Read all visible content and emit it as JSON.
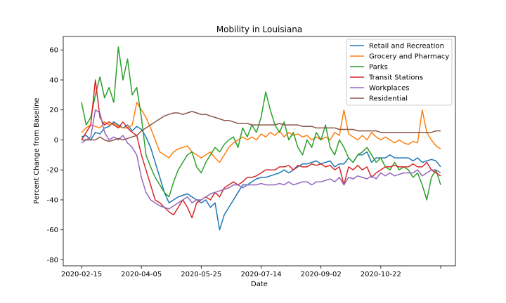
{
  "chart_data": {
    "type": "line",
    "title": "Mobility in Louisiana",
    "xlabel": "Date",
    "ylabel": "Percent Change from Baseline",
    "x_ticks": [
      "2020-02-15",
      "2020-04-05",
      "2020-05-25",
      "2020-07-14",
      "2020-09-02",
      "2020-10-22",
      ""
    ],
    "ylim": [
      -84,
      69
    ],
    "yticks": [
      -80,
      -60,
      -40,
      -20,
      0,
      20,
      40,
      60
    ],
    "grid": false,
    "legend_position": "top-right",
    "series_colors": [
      "#1f77b4",
      "#ff7f0e",
      "#2ca02c",
      "#d62728",
      "#9467bd",
      "#8c564b"
    ],
    "series": [
      {
        "name": "Retail and Recreation",
        "values": [
          2,
          3,
          0,
          5,
          4,
          8,
          9,
          12,
          10,
          8,
          10,
          6,
          9,
          7,
          2,
          -5,
          -15,
          -25,
          -35,
          -42,
          -40,
          -38,
          -37,
          -36,
          -38,
          -40,
          -42,
          -40,
          -45,
          -42,
          -60,
          -50,
          -45,
          -40,
          -35,
          -30,
          -30,
          -28,
          -26,
          -25,
          -25,
          -24,
          -23,
          -22,
          -20,
          -22,
          -20,
          -18,
          -16,
          -16,
          -15,
          -14,
          -16,
          -15,
          -14,
          -18,
          -16,
          -16,
          -12,
          -15,
          -10,
          -10,
          -8,
          -15,
          -12,
          -12,
          -12,
          -10,
          -12,
          -12,
          -12,
          -12,
          -14,
          -12,
          -15,
          -14,
          -13,
          -14,
          -18
        ]
      },
      {
        "name": "Grocery and Pharmacy",
        "values": [
          5,
          8,
          10,
          9,
          8,
          12,
          10,
          11,
          9,
          8,
          8,
          10,
          25,
          20,
          15,
          8,
          0,
          -8,
          -10,
          -12,
          -8,
          -6,
          -5,
          -4,
          -8,
          -10,
          -12,
          -10,
          -8,
          -12,
          -15,
          -10,
          -5,
          -2,
          0,
          2,
          0,
          2,
          0,
          4,
          2,
          5,
          3,
          6,
          2,
          5,
          3,
          4,
          2,
          3,
          0,
          2,
          0,
          2,
          0,
          5,
          3,
          20,
          4,
          2,
          0,
          3,
          0,
          5,
          2,
          0,
          2,
          0,
          -2,
          0,
          -2,
          -3,
          -1,
          -2,
          20,
          5,
          0,
          -4,
          -6
        ]
      },
      {
        "name": "Parks",
        "values": [
          25,
          10,
          15,
          30,
          42,
          28,
          35,
          25,
          62,
          40,
          54,
          30,
          35,
          15,
          -10,
          -18,
          -25,
          -30,
          -35,
          -38,
          -28,
          -20,
          -15,
          -10,
          -8,
          -18,
          -22,
          -15,
          -10,
          -5,
          -8,
          -3,
          0,
          2,
          -5,
          8,
          2,
          10,
          5,
          15,
          32,
          20,
          10,
          5,
          12,
          0,
          5,
          -5,
          -10,
          0,
          -5,
          5,
          0,
          10,
          -5,
          -10,
          0,
          -5,
          -12,
          -15,
          -10,
          -8,
          -5,
          -10,
          -15,
          -12,
          -18,
          -20,
          -15,
          -20,
          -18,
          -20,
          -25,
          -22,
          -30,
          -40,
          -25,
          -20,
          -30
        ]
      },
      {
        "name": "Transit Stations",
        "values": [
          0,
          5,
          10,
          40,
          15,
          10,
          12,
          10,
          8,
          12,
          8,
          5,
          3,
          -10,
          -20,
          -30,
          -40,
          -42,
          -45,
          -48,
          -50,
          -45,
          -40,
          -45,
          -52,
          -42,
          -40,
          -38,
          -40,
          -35,
          -38,
          -32,
          -30,
          -28,
          -30,
          -28,
          -25,
          -25,
          -24,
          -22,
          -20,
          -20,
          -20,
          -18,
          -18,
          -17,
          -20,
          -17,
          -18,
          -18,
          -16,
          -17,
          -16,
          -18,
          -17,
          -20,
          -18,
          -30,
          -18,
          -20,
          -17,
          -20,
          -18,
          -25,
          -22,
          -20,
          -18,
          -18,
          -17,
          -18,
          -18,
          -18,
          -16,
          -18,
          -18,
          -15,
          -20,
          -22,
          -24
        ]
      },
      {
        "name": "Workplaces",
        "values": [
          -2,
          0,
          2,
          20,
          18,
          5,
          0,
          2,
          0,
          3,
          -2,
          -5,
          -10,
          -25,
          -35,
          -40,
          -42,
          -44,
          -45,
          -46,
          -44,
          -42,
          -40,
          -38,
          -42,
          -40,
          -40,
          -38,
          -36,
          -35,
          -34,
          -33,
          -32,
          -30,
          -30,
          -32,
          -30,
          -30,
          -30,
          -29,
          -30,
          -30,
          -30,
          -29,
          -30,
          -28,
          -30,
          -29,
          -28,
          -28,
          -30,
          -28,
          -28,
          -27,
          -26,
          -28,
          -25,
          -30,
          -25,
          -26,
          -24,
          -25,
          -26,
          -24,
          -26,
          -22,
          -24,
          -22,
          -24,
          -23,
          -22,
          -22,
          -22,
          -20,
          -24,
          -22,
          -20,
          -20,
          -22
        ]
      },
      {
        "name": "Residential",
        "values": [
          0,
          0,
          0,
          0,
          2,
          0,
          -1,
          0,
          1,
          0,
          1,
          2,
          3,
          6,
          8,
          10,
          12,
          14,
          16,
          17,
          18,
          18,
          17,
          18,
          19,
          18,
          17,
          17,
          16,
          15,
          14,
          13,
          13,
          12,
          11,
          11,
          11,
          10,
          10,
          10,
          10,
          10,
          10,
          11,
          10,
          10,
          10,
          10,
          9,
          9,
          9,
          8,
          8,
          8,
          8,
          8,
          7,
          7,
          7,
          7,
          6,
          6,
          6,
          6,
          6,
          5,
          5,
          5,
          5,
          5,
          5,
          5,
          5,
          5,
          5,
          5,
          5,
          6,
          6
        ]
      }
    ]
  }
}
